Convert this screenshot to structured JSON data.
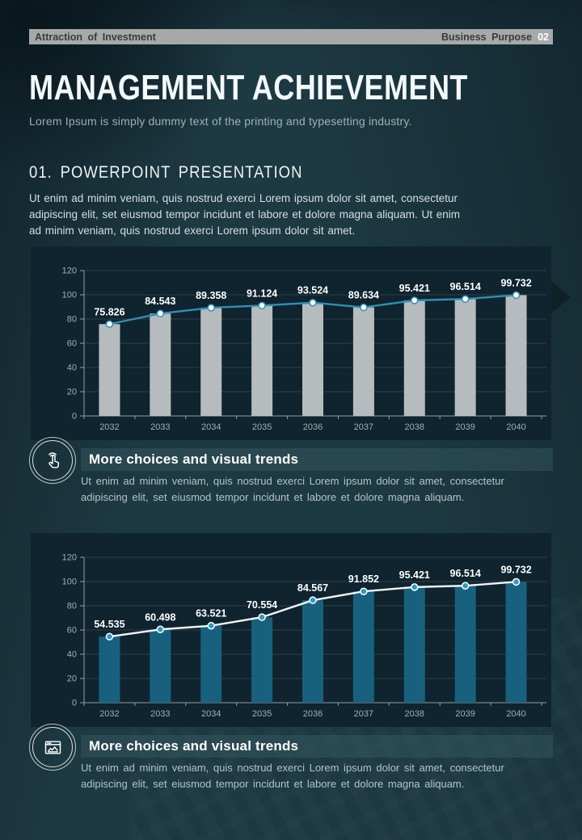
{
  "header": {
    "left_label": "Attraction of Investment",
    "right_label": "Business Purpose",
    "page_number": "02"
  },
  "title": "MANAGEMENT ACHIEVEMENT",
  "subtitle": "Lorem Ipsum is simply dummy text of the printing and typesetting industry.",
  "section": {
    "heading": "01. POWERPOINT PRESENTATION",
    "body": "Ut enim ad minim veniam, quis nostrud exerci  Lorem ipsum dolor sit amet, consectetur adipiscing elit, set eiusmod tempor incidunt et labore et dolore magna aliquam. Ut enim ad minim veniam, quis nostrud exerci  Lorem ipsum dolor sit amet."
  },
  "features": [
    {
      "icon": "tap-gesture-icon",
      "title": "More choices and visual trends",
      "body": "Ut enim ad minim veniam, quis nostrud exerci  Lorem ipsum dolor sit amet, consectetur adipiscing elit, set eiusmod tempor incidunt et labore et dolore magna aliquam."
    },
    {
      "icon": "browser-chart-icon",
      "title": "More choices and visual trends",
      "body": "Ut enim ad minim veniam, quis nostrud exerci  Lorem ipsum dolor sit amet, consectetur adipiscing elit, set eiusmod tempor incidunt et labore et dolore magna aliquam."
    }
  ],
  "colors": {
    "page_bg": "#1d3942",
    "panel_bg": "#10242f",
    "header_bar": "#a7a9a9",
    "accent_teal": "#2e8fb4"
  },
  "chart_data": [
    {
      "type": "bar+line",
      "categories": [
        "2032",
        "2033",
        "2034",
        "2035",
        "2036",
        "2037",
        "2038",
        "2039",
        "2040"
      ],
      "values": [
        75.826,
        84.543,
        89.358,
        91.124,
        93.524,
        89.634,
        95.421,
        96.514,
        99.732
      ],
      "labels": [
        "75.826",
        "84.543",
        "89.358",
        "91.124",
        "93.524",
        "89.634",
        "95.421",
        "96.514",
        "99.732"
      ],
      "title": "",
      "xlabel": "",
      "ylabel": "",
      "ylim": [
        0,
        120
      ],
      "yticks": [
        0,
        20,
        40,
        60,
        80,
        100,
        120
      ],
      "grid": true,
      "legend": "none",
      "bar_color": "#b6bcbe",
      "line_color": "#2e8fb4",
      "marker_fill": "#ffffff",
      "marker_stroke": "#2e8fb4"
    },
    {
      "type": "bar+line",
      "categories": [
        "2032",
        "2033",
        "2034",
        "2035",
        "2036",
        "2037",
        "2038",
        "2039",
        "2040"
      ],
      "values": [
        54.535,
        60.498,
        63.521,
        70.554,
        84.567,
        91.852,
        95.421,
        96.514,
        99.732
      ],
      "labels": [
        "54.535",
        "60.498",
        "63.521",
        "70.554",
        "84.567",
        "91.852",
        "95.421",
        "96.514",
        "99.732"
      ],
      "title": "",
      "xlabel": "",
      "ylabel": "",
      "ylim": [
        0,
        120
      ],
      "yticks": [
        0,
        20,
        40,
        60,
        80,
        100,
        120
      ],
      "grid": true,
      "legend": "none",
      "bar_color": "#17617e",
      "line_color": "#f2f6f7",
      "marker_fill": "#2e9cc0",
      "marker_stroke": "#ffffff"
    }
  ]
}
